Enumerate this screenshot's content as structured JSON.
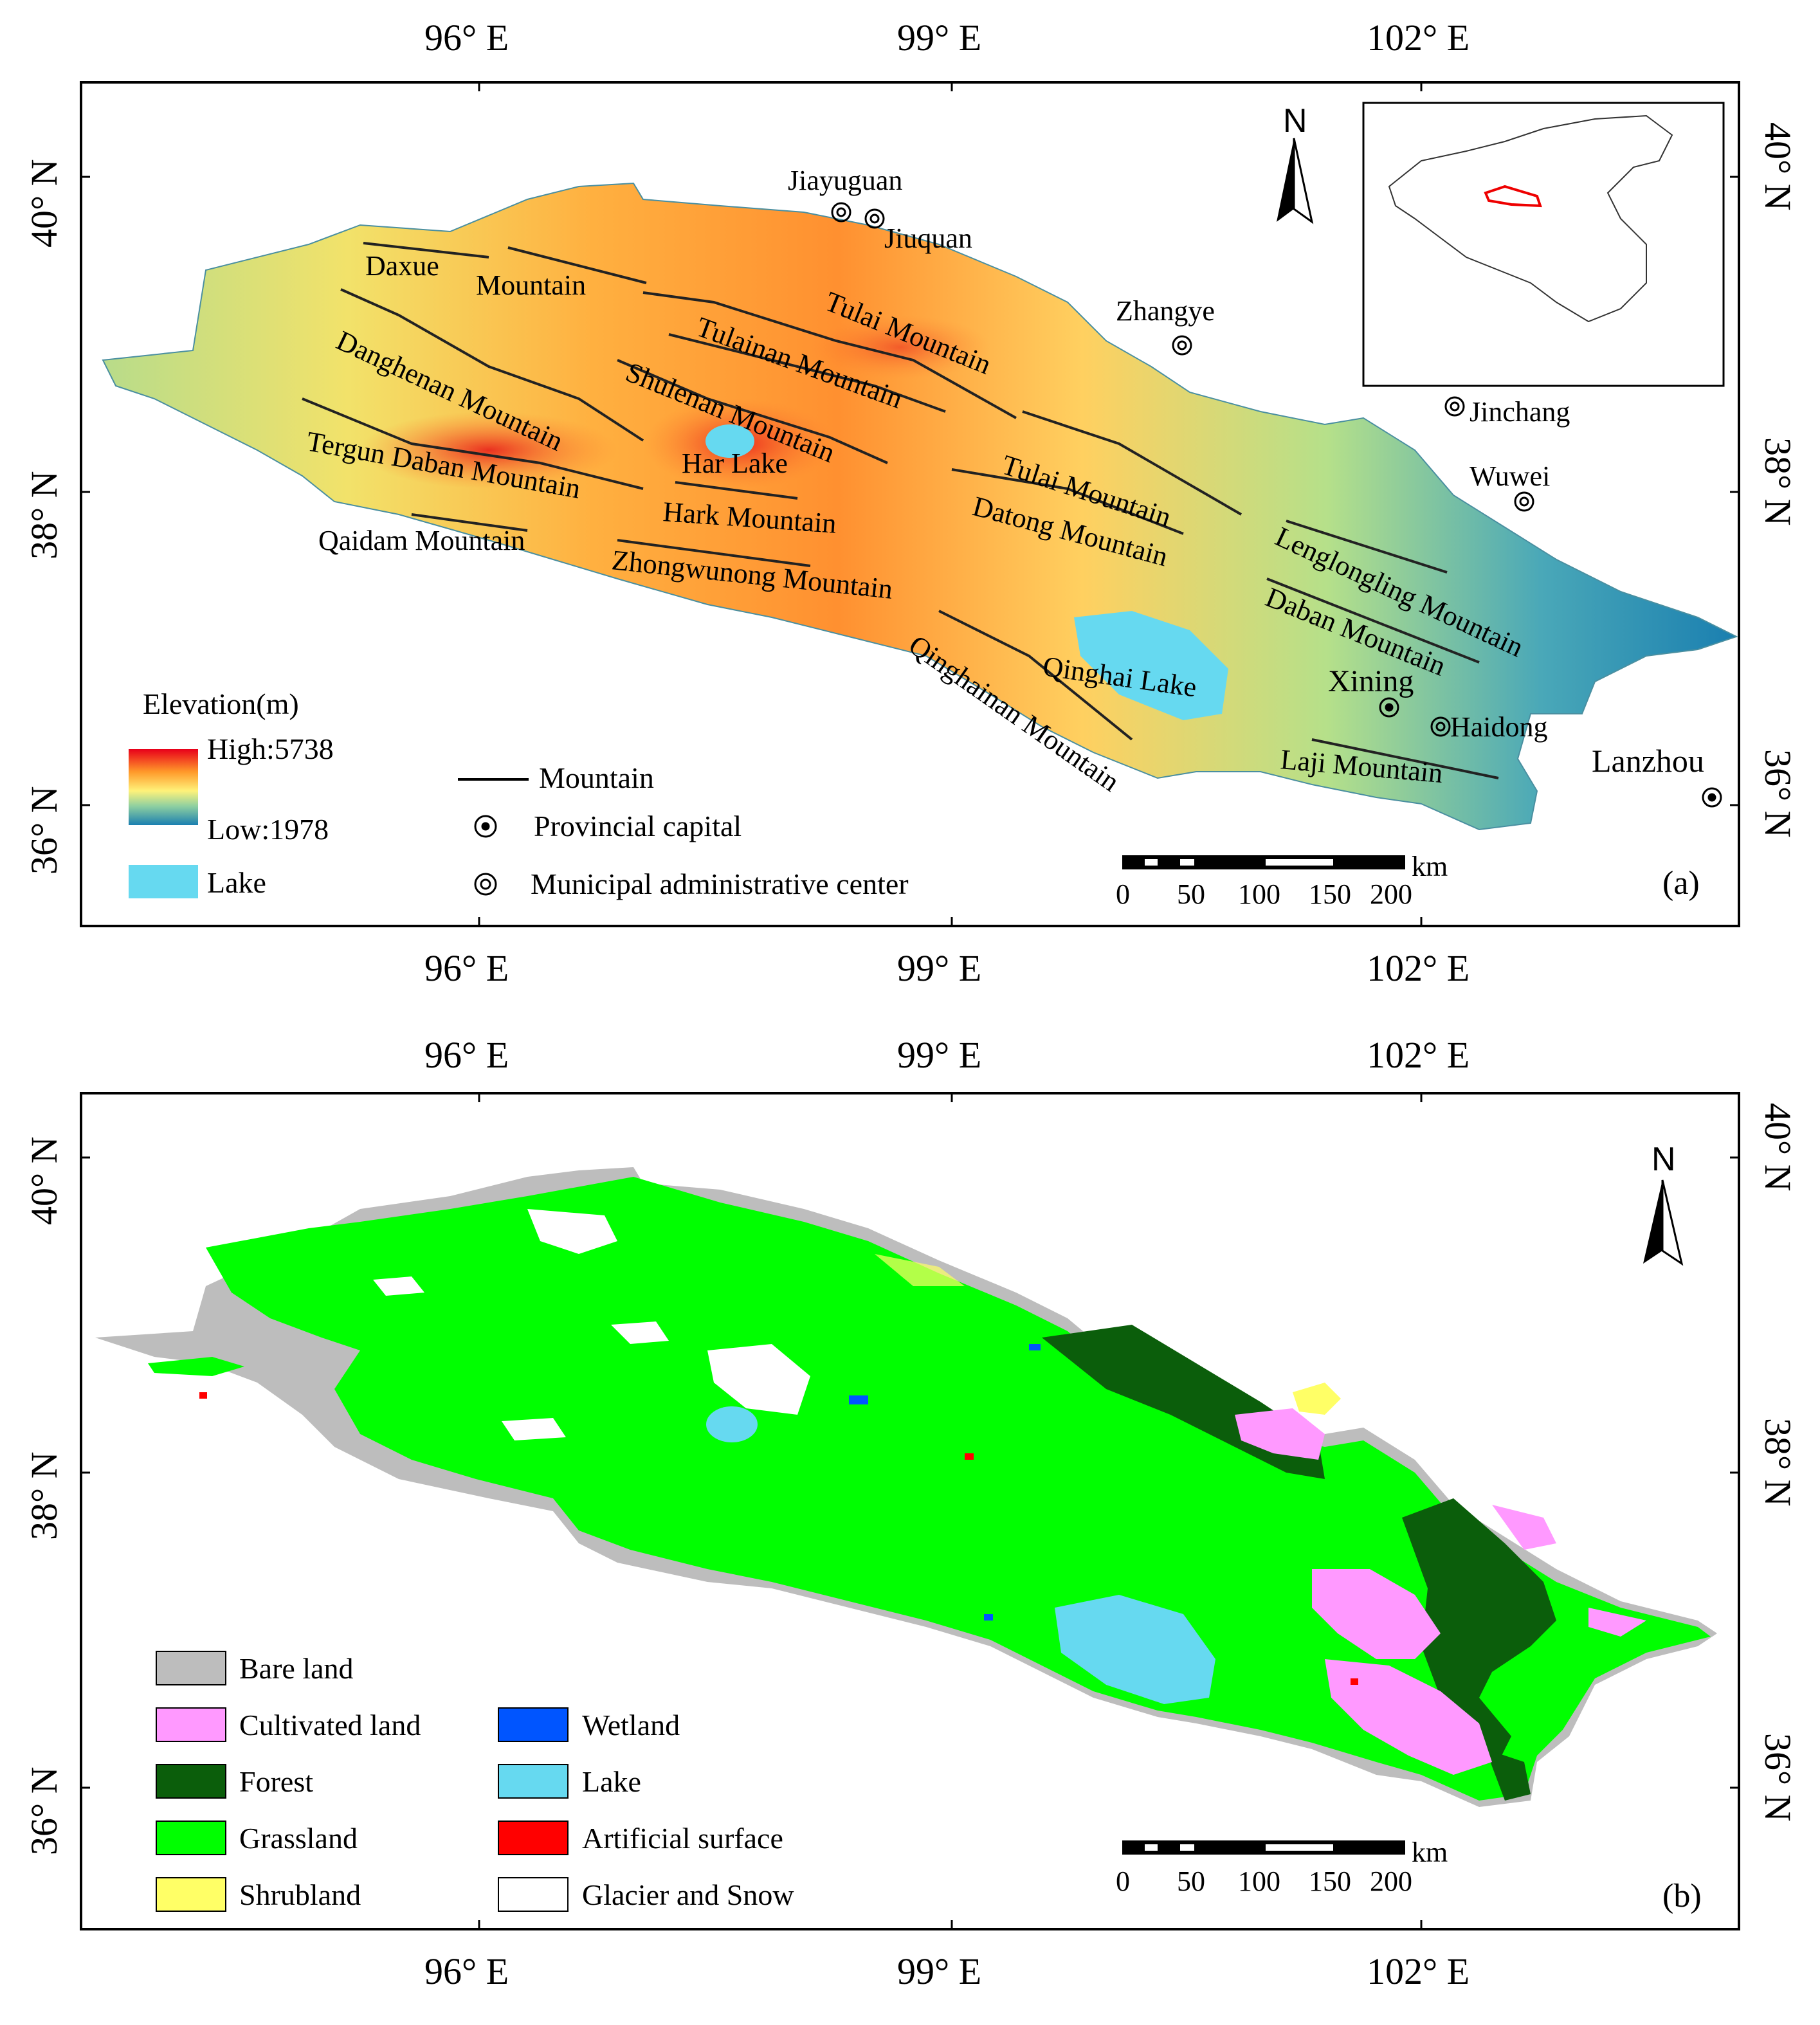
{
  "axes": {
    "top_lon": [
      "96° E",
      "99° E",
      "102° E"
    ],
    "bottom_lon": [
      "96° E",
      "99° E",
      "102° E"
    ],
    "left_lat": [
      "40° N",
      "38° N",
      "36° N"
    ],
    "right_lat": [
      "40° N",
      "38° N",
      "36° N"
    ]
  },
  "panel_a": {
    "tag": "(a)",
    "mountains": [
      "Daxue",
      "Mountain",
      "Tulai Mountain",
      "Tulainan Mountain",
      "Danghenan Mountain",
      "Shulenan Mountain",
      "Har Lake",
      "Tergun Daban Mountain",
      "Hark Mountain",
      "Qaidam Mountain",
      "Zhongwunong Mountain",
      "Tulai Mountain",
      "Datong Mountain",
      "Lenglongling Mountain",
      "Daban Mountain",
      "Qinghai Lake",
      "Qinghainan Mountain",
      "Laji Mountain"
    ],
    "cities": {
      "jiayuguan": "Jiayuguan",
      "jiuquan": "Jiuquan",
      "zhangye": "Zhangye",
      "jinchang": "Jinchang",
      "wuwei": "Wuwei",
      "xining": "Xining",
      "haidong": "Haidong",
      "lanzhou": "Lanzhou"
    },
    "legend": {
      "title": "Elevation(m)",
      "high": "High:5738",
      "low": "Low:1978",
      "lake": "Lake",
      "mountain": "Mountain",
      "capital": "Provincial capital",
      "municipal": "Municipal administrative center"
    },
    "north": "N",
    "scale": {
      "unit": "km",
      "ticks": [
        "0",
        "50",
        "100",
        "150",
        "200"
      ]
    }
  },
  "panel_b": {
    "tag": "(b)",
    "legend": [
      {
        "label": "Bare land",
        "color": "#bdbdbd"
      },
      {
        "label": "Cultivated land",
        "color": "#ff99ff"
      },
      {
        "label": "Forest",
        "color": "#0b5e0b"
      },
      {
        "label": "Grassland",
        "color": "#00ff00"
      },
      {
        "label": "Shrubland",
        "color": "#ffff66"
      },
      {
        "label": "Wetland",
        "color": "#0055ff"
      },
      {
        "label": "Lake",
        "color": "#66d9f0"
      },
      {
        "label": "Artificial surface",
        "color": "#ff0000"
      },
      {
        "label": "Glacier and Snow",
        "color": "#ffffff"
      }
    ],
    "north": "N",
    "scale": {
      "unit": "km",
      "ticks": [
        "0",
        "50",
        "100",
        "150",
        "200"
      ]
    }
  }
}
